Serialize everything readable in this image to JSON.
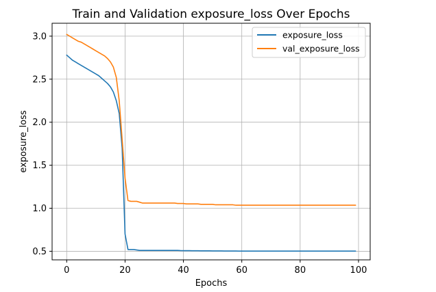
{
  "chart_data": {
    "type": "line",
    "title": "Train and Validation exposure_loss Over Epochs",
    "xlabel": "Epochs",
    "ylabel": "exposure_loss",
    "xlim": [
      -5,
      104
    ],
    "ylim": [
      0.4,
      3.15
    ],
    "xticks": [
      0,
      20,
      40,
      60,
      80,
      100
    ],
    "yticks": [
      0.5,
      1.0,
      1.5,
      2.0,
      2.5,
      3.0
    ],
    "xtick_labels": [
      "0",
      "20",
      "40",
      "60",
      "80",
      "100"
    ],
    "ytick_labels": [
      "0.5",
      "1.0",
      "1.5",
      "2.0",
      "2.5",
      "3.0"
    ],
    "grid": true,
    "legend_position": "top-right",
    "x": [
      0,
      1,
      2,
      3,
      4,
      5,
      6,
      7,
      8,
      9,
      10,
      11,
      12,
      13,
      14,
      15,
      16,
      17,
      18,
      19,
      20,
      21,
      22,
      23,
      24,
      25,
      26,
      27,
      28,
      29,
      30,
      31,
      32,
      33,
      34,
      35,
      36,
      37,
      38,
      39,
      40,
      41,
      42,
      43,
      44,
      45,
      46,
      47,
      48,
      49,
      50,
      51,
      52,
      53,
      54,
      55,
      56,
      57,
      58,
      59,
      60,
      61,
      62,
      63,
      64,
      65,
      66,
      67,
      68,
      69,
      70,
      71,
      72,
      73,
      74,
      75,
      76,
      77,
      78,
      79,
      80,
      81,
      82,
      83,
      84,
      85,
      86,
      87,
      88,
      89,
      90,
      91,
      92,
      93,
      94,
      95,
      96,
      97,
      98,
      99
    ],
    "series": [
      {
        "name": "exposure_loss",
        "color": "#1f77b4",
        "values": [
          2.78,
          2.75,
          2.72,
          2.7,
          2.68,
          2.66,
          2.64,
          2.62,
          2.6,
          2.58,
          2.56,
          2.54,
          2.51,
          2.48,
          2.45,
          2.41,
          2.35,
          2.25,
          2.1,
          1.7,
          0.7,
          0.52,
          0.52,
          0.52,
          0.515,
          0.51,
          0.51,
          0.51,
          0.51,
          0.51,
          0.51,
          0.51,
          0.51,
          0.51,
          0.51,
          0.51,
          0.51,
          0.51,
          0.51,
          0.508,
          0.507,
          0.507,
          0.507,
          0.506,
          0.506,
          0.506,
          0.505,
          0.505,
          0.505,
          0.505,
          0.504,
          0.504,
          0.504,
          0.504,
          0.503,
          0.503,
          0.503,
          0.503,
          0.503,
          0.502,
          0.502,
          0.502,
          0.502,
          0.502,
          0.502,
          0.502,
          0.502,
          0.502,
          0.502,
          0.502,
          0.502,
          0.502,
          0.502,
          0.502,
          0.502,
          0.502,
          0.502,
          0.502,
          0.502,
          0.502,
          0.502,
          0.502,
          0.502,
          0.502,
          0.502,
          0.502,
          0.502,
          0.502,
          0.502,
          0.502,
          0.502,
          0.502,
          0.502,
          0.502,
          0.502,
          0.502,
          0.502,
          0.502,
          0.502,
          0.502
        ]
      },
      {
        "name": "val_exposure_loss",
        "color": "#ff7f0e",
        "values": [
          3.02,
          3.0,
          2.98,
          2.96,
          2.94,
          2.93,
          2.91,
          2.89,
          2.87,
          2.85,
          2.83,
          2.81,
          2.79,
          2.77,
          2.74,
          2.7,
          2.64,
          2.52,
          2.25,
          1.8,
          1.35,
          1.09,
          1.08,
          1.08,
          1.08,
          1.07,
          1.06,
          1.06,
          1.06,
          1.06,
          1.06,
          1.06,
          1.06,
          1.06,
          1.06,
          1.06,
          1.06,
          1.06,
          1.055,
          1.055,
          1.055,
          1.05,
          1.05,
          1.05,
          1.05,
          1.05,
          1.045,
          1.045,
          1.045,
          1.045,
          1.045,
          1.04,
          1.04,
          1.04,
          1.04,
          1.04,
          1.04,
          1.04,
          1.035,
          1.035,
          1.035,
          1.035,
          1.035,
          1.035,
          1.035,
          1.035,
          1.035,
          1.035,
          1.035,
          1.035,
          1.035,
          1.035,
          1.035,
          1.035,
          1.035,
          1.035,
          1.035,
          1.035,
          1.035,
          1.035,
          1.035,
          1.035,
          1.035,
          1.035,
          1.035,
          1.035,
          1.035,
          1.035,
          1.035,
          1.035,
          1.035,
          1.035,
          1.035,
          1.035,
          1.035,
          1.035,
          1.035,
          1.035,
          1.035,
          1.035
        ]
      }
    ]
  }
}
